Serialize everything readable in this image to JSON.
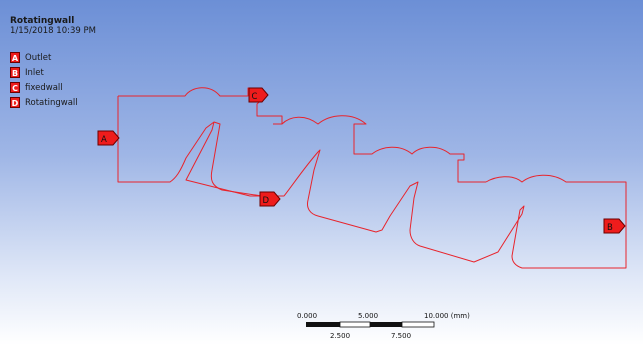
{
  "header": {
    "title": "Rotatingwall",
    "datetime": "1/15/2018 10:39 PM"
  },
  "legend": [
    {
      "letter": "A",
      "label": "Outlet"
    },
    {
      "letter": "B",
      "label": "Inlet"
    },
    {
      "letter": "C",
      "label": "fixedwall"
    },
    {
      "letter": "D",
      "label": "Rotatingwall"
    }
  ],
  "tags": {
    "a": "A",
    "b": "B",
    "c": "C",
    "d": "D"
  },
  "scale_bar": {
    "top_labels": [
      "0.000",
      "5.000",
      "10.000 (mm)"
    ],
    "bottom_labels": [
      "2.500",
      "7.500"
    ]
  },
  "colors": {
    "tag_fill": "#ee1c1c",
    "geometry_stroke": "#e8242c",
    "background_top": "#6c8fd6",
    "background_bottom": "#ffffff"
  }
}
